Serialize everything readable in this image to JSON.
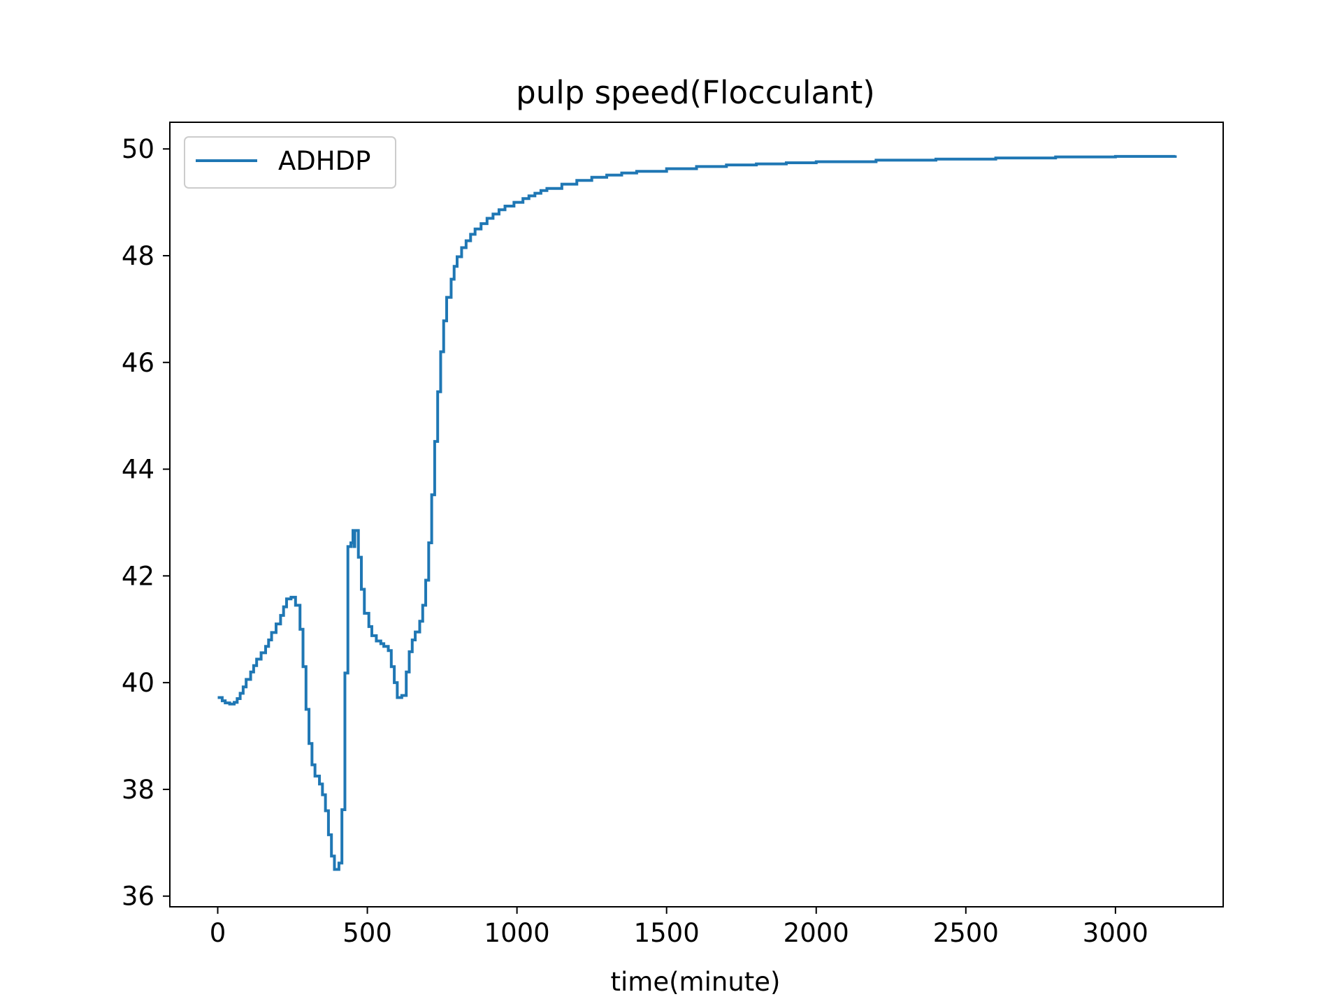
{
  "chart_data": {
    "type": "line",
    "title": "pulp speed(Flocculant)",
    "xlabel": "time(minute)",
    "ylabel": "",
    "xlim": [
      -160,
      3360
    ],
    "ylim": [
      35.8,
      50.5
    ],
    "xticks": [
      0,
      500,
      1000,
      1500,
      2000,
      2500,
      3000
    ],
    "yticks": [
      36,
      38,
      40,
      42,
      44,
      46,
      48,
      50
    ],
    "grid": false,
    "legend": {
      "position": "top-left",
      "entries": [
        "ADHDP"
      ]
    },
    "series": [
      {
        "name": "ADHDP",
        "color": "#1f77b4",
        "step": true,
        "points": [
          [
            0,
            39.72
          ],
          [
            10,
            39.72
          ],
          [
            15,
            39.66
          ],
          [
            20,
            39.66
          ],
          [
            25,
            39.62
          ],
          [
            30,
            39.62
          ],
          [
            40,
            39.6
          ],
          [
            50,
            39.6
          ],
          [
            55,
            39.63
          ],
          [
            60,
            39.63
          ],
          [
            65,
            39.7
          ],
          [
            70,
            39.7
          ],
          [
            75,
            39.8
          ],
          [
            80,
            39.8
          ],
          [
            85,
            39.92
          ],
          [
            90,
            39.92
          ],
          [
            95,
            40.06
          ],
          [
            100,
            40.06
          ],
          [
            110,
            40.2
          ],
          [
            115,
            40.2
          ],
          [
            120,
            40.32
          ],
          [
            125,
            40.32
          ],
          [
            130,
            40.44
          ],
          [
            140,
            40.44
          ],
          [
            145,
            40.56
          ],
          [
            150,
            40.56
          ],
          [
            160,
            40.68
          ],
          [
            165,
            40.68
          ],
          [
            170,
            40.8
          ],
          [
            175,
            40.8
          ],
          [
            180,
            40.94
          ],
          [
            190,
            40.94
          ],
          [
            195,
            41.1
          ],
          [
            200,
            41.1
          ],
          [
            210,
            41.26
          ],
          [
            215,
            41.26
          ],
          [
            220,
            41.42
          ],
          [
            225,
            41.42
          ],
          [
            230,
            41.57
          ],
          [
            240,
            41.57
          ],
          [
            245,
            41.6
          ],
          [
            255,
            41.6
          ],
          [
            260,
            41.45
          ],
          [
            270,
            41.45
          ],
          [
            275,
            41.0
          ],
          [
            280,
            41.0
          ],
          [
            285,
            40.3
          ],
          [
            290,
            40.3
          ],
          [
            295,
            39.5
          ],
          [
            300,
            39.5
          ],
          [
            305,
            38.86
          ],
          [
            310,
            38.86
          ],
          [
            315,
            38.46
          ],
          [
            320,
            38.46
          ],
          [
            325,
            38.25
          ],
          [
            330,
            38.25
          ],
          [
            340,
            38.1
          ],
          [
            345,
            38.1
          ],
          [
            350,
            37.9
          ],
          [
            355,
            37.9
          ],
          [
            360,
            37.6
          ],
          [
            365,
            37.6
          ],
          [
            370,
            37.15
          ],
          [
            375,
            37.15
          ],
          [
            380,
            36.75
          ],
          [
            385,
            36.75
          ],
          [
            390,
            36.5
          ],
          [
            400,
            36.5
          ],
          [
            405,
            36.62
          ],
          [
            410,
            36.62
          ],
          [
            415,
            37.62
          ],
          [
            420,
            37.62
          ],
          [
            425,
            40.18
          ],
          [
            430,
            40.18
          ],
          [
            435,
            42.55
          ],
          [
            440,
            42.55
          ],
          [
            445,
            42.62
          ],
          [
            450,
            42.62
          ],
          [
            452,
            42.85
          ],
          [
            455,
            42.55
          ],
          [
            458,
            42.85
          ],
          [
            465,
            42.85
          ],
          [
            470,
            42.35
          ],
          [
            475,
            42.35
          ],
          [
            480,
            41.75
          ],
          [
            485,
            41.75
          ],
          [
            490,
            41.3
          ],
          [
            500,
            41.3
          ],
          [
            505,
            41.05
          ],
          [
            510,
            41.05
          ],
          [
            515,
            40.88
          ],
          [
            520,
            40.88
          ],
          [
            530,
            40.78
          ],
          [
            540,
            40.78
          ],
          [
            545,
            40.73
          ],
          [
            550,
            40.73
          ],
          [
            555,
            40.68
          ],
          [
            560,
            40.68
          ],
          [
            570,
            40.6
          ],
          [
            575,
            40.6
          ],
          [
            580,
            40.3
          ],
          [
            585,
            40.3
          ],
          [
            590,
            40.0
          ],
          [
            595,
            40.0
          ],
          [
            600,
            39.72
          ],
          [
            610,
            39.72
          ],
          [
            615,
            39.76
          ],
          [
            625,
            39.76
          ],
          [
            630,
            40.2
          ],
          [
            635,
            40.2
          ],
          [
            640,
            40.58
          ],
          [
            645,
            40.58
          ],
          [
            650,
            40.8
          ],
          [
            655,
            40.8
          ],
          [
            660,
            40.95
          ],
          [
            670,
            40.95
          ],
          [
            675,
            41.15
          ],
          [
            680,
            41.15
          ],
          [
            685,
            41.45
          ],
          [
            690,
            41.45
          ],
          [
            695,
            41.92
          ],
          [
            700,
            41.92
          ],
          [
            705,
            42.62
          ],
          [
            710,
            42.62
          ],
          [
            715,
            43.52
          ],
          [
            720,
            43.52
          ],
          [
            725,
            44.52
          ],
          [
            730,
            44.52
          ],
          [
            735,
            45.45
          ],
          [
            740,
            45.45
          ],
          [
            745,
            46.2
          ],
          [
            750,
            46.2
          ],
          [
            755,
            46.78
          ],
          [
            760,
            46.78
          ],
          [
            765,
            47.22
          ],
          [
            770,
            47.22
          ],
          [
            780,
            47.56
          ],
          [
            785,
            47.56
          ],
          [
            790,
            47.8
          ],
          [
            795,
            47.8
          ],
          [
            800,
            47.98
          ],
          [
            810,
            47.98
          ],
          [
            815,
            48.15
          ],
          [
            820,
            48.15
          ],
          [
            830,
            48.28
          ],
          [
            840,
            48.28
          ],
          [
            845,
            48.4
          ],
          [
            850,
            48.4
          ],
          [
            860,
            48.5
          ],
          [
            870,
            48.5
          ],
          [
            880,
            48.6
          ],
          [
            890,
            48.6
          ],
          [
            900,
            48.7
          ],
          [
            910,
            48.7
          ],
          [
            920,
            48.78
          ],
          [
            930,
            48.78
          ],
          [
            940,
            48.86
          ],
          [
            950,
            48.86
          ],
          [
            960,
            48.93
          ],
          [
            975,
            48.93
          ],
          [
            990,
            49.0
          ],
          [
            1000,
            49.0
          ],
          [
            1020,
            49.07
          ],
          [
            1040,
            49.12
          ],
          [
            1060,
            49.17
          ],
          [
            1080,
            49.22
          ],
          [
            1100,
            49.26
          ],
          [
            1150,
            49.34
          ],
          [
            1200,
            49.41
          ],
          [
            1250,
            49.47
          ],
          [
            1300,
            49.51
          ],
          [
            1350,
            49.55
          ],
          [
            1400,
            49.58
          ],
          [
            1500,
            49.63
          ],
          [
            1600,
            49.67
          ],
          [
            1700,
            49.7
          ],
          [
            1800,
            49.72
          ],
          [
            1900,
            49.74
          ],
          [
            2000,
            49.76
          ],
          [
            2200,
            49.79
          ],
          [
            2400,
            49.81
          ],
          [
            2600,
            49.83
          ],
          [
            2800,
            49.85
          ],
          [
            3000,
            49.86
          ],
          [
            3200,
            49.88
          ]
        ]
      }
    ]
  }
}
